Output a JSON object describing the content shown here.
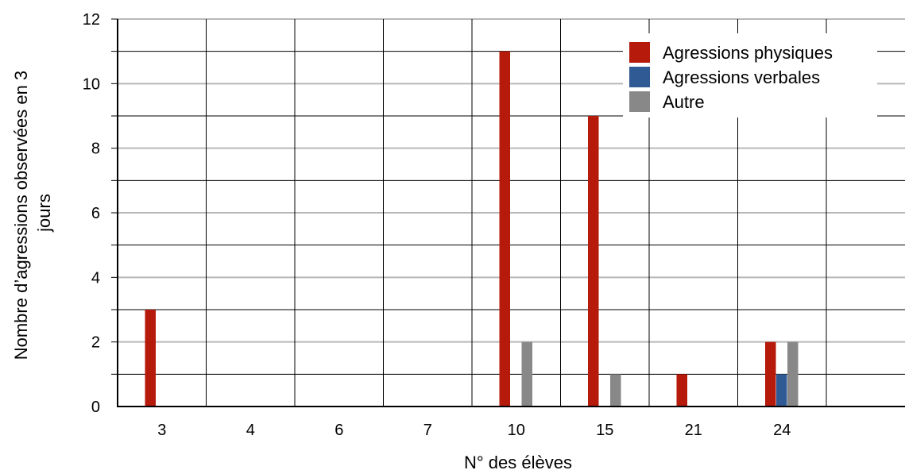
{
  "chart_data": {
    "type": "bar",
    "categories": [
      "3",
      "4",
      "6",
      "7",
      "10",
      "15",
      "21",
      "24",
      ""
    ],
    "series": [
      {
        "name": "Agressions physiques",
        "values": [
          3,
          0,
          0,
          0,
          11,
          9,
          1,
          2,
          0
        ]
      },
      {
        "name": "Agressions verbales",
        "values": [
          0,
          0,
          0,
          0,
          0,
          0,
          0,
          1,
          0
        ]
      },
      {
        "name": "Autre",
        "values": [
          0,
          0,
          0,
          0,
          2,
          1,
          0,
          2,
          0
        ]
      }
    ],
    "title": "",
    "xlabel": "N° des élèves",
    "ylabel_lines": [
      "Nombre d’agressions observées en 3",
      "jours"
    ],
    "ylim": [
      0,
      12
    ],
    "yticks": [
      "0",
      "2",
      "4",
      "6",
      "8",
      "10",
      "12"
    ],
    "grid": true,
    "legend_position": "top-right",
    "colors": {
      "Agressions physiques": "#b51a0b",
      "Agressions verbales": "#2f5a94",
      "Autre": "#888888"
    }
  }
}
